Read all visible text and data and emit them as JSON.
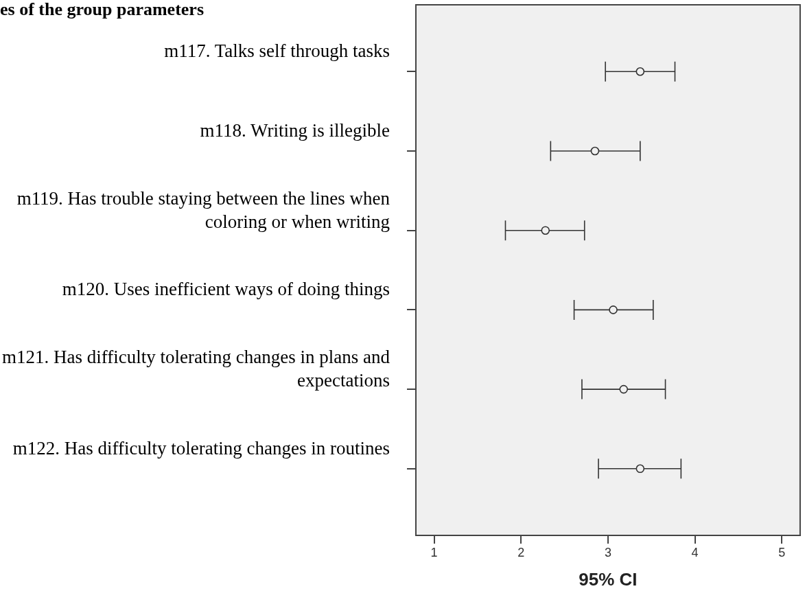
{
  "chart_data": {
    "type": "scatter",
    "title": "es of the group parameters",
    "xlabel": "95% CI",
    "orientation": "horizontal",
    "categories": [
      "m117. Talks self through tasks",
      "m118. Writing is illegible",
      "m119. Has trouble staying between the lines when coloring or when writing",
      "m120. Uses inefficient ways of doing things",
      "m121. Has difficulty tolerating changes in plans and expectations",
      "m122. Has difficulty tolerating changes in routines"
    ],
    "values": [
      3.37,
      2.85,
      2.28,
      3.06,
      3.18,
      3.37
    ],
    "errors": [
      [
        2.97,
        3.77
      ],
      [
        2.34,
        3.37
      ],
      [
        1.82,
        2.73
      ],
      [
        2.61,
        3.52
      ],
      [
        2.7,
        3.66
      ],
      [
        2.89,
        3.84
      ]
    ],
    "color": "#333333",
    "marker": "circle",
    "xlim": [
      0.79,
      5.21
    ],
    "xticks": [
      1,
      2,
      3,
      4,
      5
    ]
  }
}
